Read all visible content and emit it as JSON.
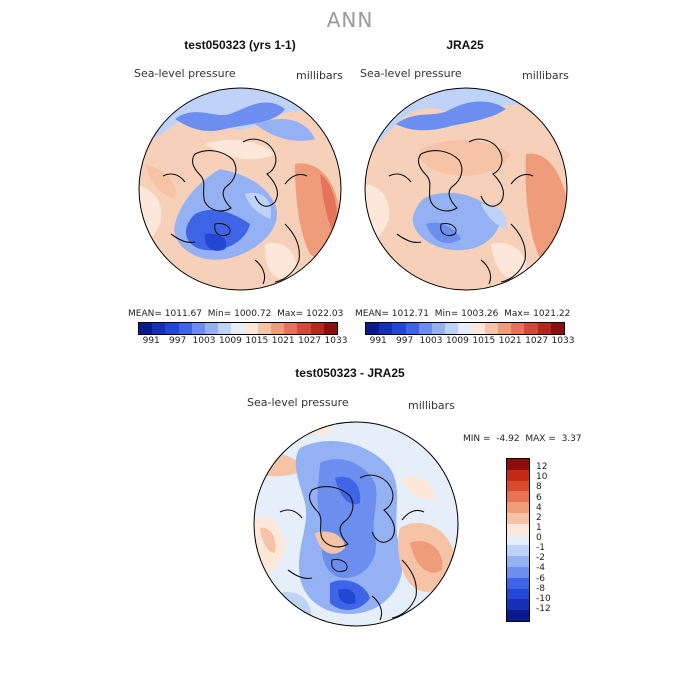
{
  "title": "ANN",
  "colors": {
    "abs_scale": [
      "#0a1a8a",
      "#1530b5",
      "#2446d4",
      "#3f64e6",
      "#6b8ef0",
      "#94b1f4",
      "#bed3f7",
      "#e6eefa",
      "#fde7d8",
      "#f6c3a6",
      "#ef9c7b",
      "#e4735a",
      "#d24a37",
      "#b22a1e",
      "#8a1010"
    ],
    "diff_scale": [
      "#0a1a8a",
      "#1530b5",
      "#2446d4",
      "#3f64e6",
      "#6b8ef0",
      "#94b1f4",
      "#bed3f7",
      "#e6eefa",
      "#fde7d8",
      "#f6c3a6",
      "#ef9c7b",
      "#e87354",
      "#d94b2c",
      "#c52a14",
      "#8c0d0a"
    ]
  },
  "panels": [
    {
      "title": "test050323 (yrs 1-1)",
      "variable": "Sea-level pressure",
      "units": "millibars",
      "mean_label": "MEAN=",
      "mean": "1011.67",
      "min_label": "Min=",
      "min": "1000.72",
      "max_label": "Max=",
      "max": "1022.03",
      "colorbar_ticks": [
        "991",
        "997",
        "1003",
        "1009",
        "1015",
        "1021",
        "1027",
        "1033"
      ]
    },
    {
      "title": "JRA25",
      "variable": "Sea-level pressure",
      "units": "millibars",
      "mean_label": "MEAN=",
      "mean": "1012.71",
      "min_label": "Min=",
      "min": "1003.26",
      "max_label": "Max=",
      "max": "1021.22",
      "colorbar_ticks": [
        "991",
        "997",
        "1003",
        "1009",
        "1015",
        "1021",
        "1027",
        "1033"
      ]
    },
    {
      "title": "test050323 - JRA25",
      "variable": "Sea-level pressure",
      "units": "millibars",
      "min_label": "MIN =",
      "min": "-4.92",
      "max_label": "MAX =",
      "max": "3.37",
      "colorbar_ticks": [
        "12",
        "10",
        "8",
        "6",
        "4",
        "2",
        "1",
        "0",
        "-1",
        "-2",
        "-4",
        "-6",
        "-8",
        "-10",
        "-12"
      ]
    }
  ]
}
